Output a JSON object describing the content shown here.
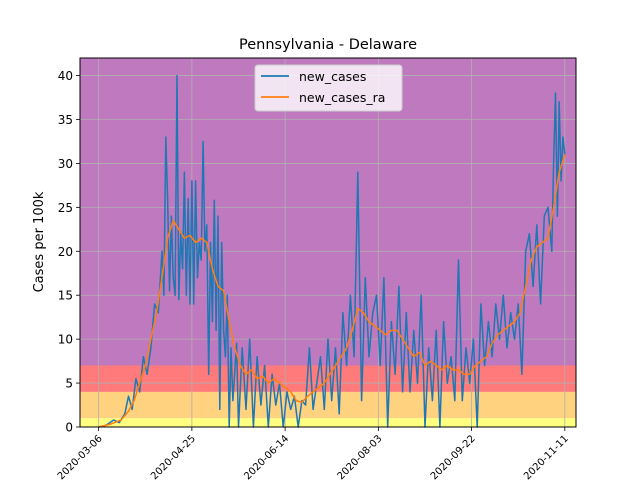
{
  "chart_data": {
    "type": "line",
    "title": "Pennsylvania - Delaware",
    "xlabel": "",
    "ylabel": "Cases per 100k",
    "x_range": [
      "2020-02-25",
      "2020-11-17"
    ],
    "ylim": [
      0,
      42
    ],
    "grid": true,
    "legend_position": "top-center",
    "x_ticks": [
      "2020-03-06",
      "2020-04-25",
      "2020-06-14",
      "2020-08-03",
      "2020-09-22",
      "2020-11-11"
    ],
    "y_ticks": [
      0,
      5,
      10,
      15,
      20,
      25,
      30,
      35,
      40
    ],
    "bands": [
      {
        "from": 0,
        "to": 1,
        "color": "#ffff80"
      },
      {
        "from": 1,
        "to": 4,
        "color": "#ffd280"
      },
      {
        "from": 4,
        "to": 7,
        "color": "#ff7a7a"
      },
      {
        "from": 7,
        "to": 42,
        "color": "#bf7abf"
      }
    ],
    "series": [
      {
        "name": "new_cases",
        "color": "#1f77b4",
        "points": [
          [
            "2020-03-06",
            0.0
          ],
          [
            "2020-03-10",
            0.2
          ],
          [
            "2020-03-14",
            0.8
          ],
          [
            "2020-03-17",
            0.5
          ],
          [
            "2020-03-20",
            1.5
          ],
          [
            "2020-03-22",
            3.5
          ],
          [
            "2020-03-24",
            2.0
          ],
          [
            "2020-03-26",
            5.5
          ],
          [
            "2020-03-28",
            4.0
          ],
          [
            "2020-03-30",
            8.0
          ],
          [
            "2020-04-01",
            6.0
          ],
          [
            "2020-04-03",
            9.0
          ],
          [
            "2020-04-05",
            14.0
          ],
          [
            "2020-04-07",
            13.0
          ],
          [
            "2020-04-09",
            20.0
          ],
          [
            "2020-04-10",
            15.0
          ],
          [
            "2020-04-11",
            33.0
          ],
          [
            "2020-04-12",
            26.0
          ],
          [
            "2020-04-13",
            15.5
          ],
          [
            "2020-04-14",
            24.0
          ],
          [
            "2020-04-15",
            17.0
          ],
          [
            "2020-04-16",
            15.0
          ],
          [
            "2020-04-17",
            40.0
          ],
          [
            "2020-04-18",
            14.5
          ],
          [
            "2020-04-19",
            22.0
          ],
          [
            "2020-04-20",
            18.0
          ],
          [
            "2020-04-21",
            29.0
          ],
          [
            "2020-04-22",
            15.0
          ],
          [
            "2020-04-23",
            26.0
          ],
          [
            "2020-04-24",
            14.0
          ],
          [
            "2020-04-25",
            28.0
          ],
          [
            "2020-04-26",
            14.0
          ],
          [
            "2020-04-27",
            28.0
          ],
          [
            "2020-04-28",
            17.0
          ],
          [
            "2020-04-29",
            21.0
          ],
          [
            "2020-04-30",
            19.0
          ],
          [
            "2020-05-01",
            32.5
          ],
          [
            "2020-05-02",
            20.0
          ],
          [
            "2020-05-03",
            23.0
          ],
          [
            "2020-05-04",
            6.0
          ],
          [
            "2020-05-05",
            21.0
          ],
          [
            "2020-05-06",
            12.0
          ],
          [
            "2020-05-07",
            25.8
          ],
          [
            "2020-05-08",
            11.0
          ],
          [
            "2020-05-09",
            24.0
          ],
          [
            "2020-05-10",
            2.0
          ],
          [
            "2020-05-11",
            21.0
          ],
          [
            "2020-05-12",
            11.0
          ],
          [
            "2020-05-13",
            8.0
          ],
          [
            "2020-05-14",
            15.0
          ],
          [
            "2020-05-15",
            0.0
          ],
          [
            "2020-05-16",
            9.0
          ],
          [
            "2020-05-17",
            3.0
          ],
          [
            "2020-05-19",
            9.5
          ],
          [
            "2020-05-20",
            0.0
          ],
          [
            "2020-05-22",
            9.0
          ],
          [
            "2020-05-24",
            2.0
          ],
          [
            "2020-05-26",
            10.0
          ],
          [
            "2020-05-28",
            0.0
          ],
          [
            "2020-05-30",
            8.0
          ],
          [
            "2020-06-01",
            2.5
          ],
          [
            "2020-06-03",
            7.0
          ],
          [
            "2020-06-05",
            0.0
          ],
          [
            "2020-06-07",
            6.0
          ],
          [
            "2020-06-09",
            2.5
          ],
          [
            "2020-06-11",
            5.0
          ],
          [
            "2020-06-13",
            0.0
          ],
          [
            "2020-06-15",
            4.0
          ],
          [
            "2020-06-17",
            2.0
          ],
          [
            "2020-06-19",
            3.5
          ],
          [
            "2020-06-21",
            0.0
          ],
          [
            "2020-06-23",
            3.0
          ],
          [
            "2020-06-25",
            2.5
          ],
          [
            "2020-06-27",
            9.0
          ],
          [
            "2020-06-29",
            2.0
          ],
          [
            "2020-07-01",
            5.0
          ],
          [
            "2020-07-03",
            8.0
          ],
          [
            "2020-07-05",
            2.0
          ],
          [
            "2020-07-07",
            10.0
          ],
          [
            "2020-07-09",
            3.0
          ],
          [
            "2020-07-11",
            9.0
          ],
          [
            "2020-07-13",
            1.5
          ],
          [
            "2020-07-15",
            13.0
          ],
          [
            "2020-07-17",
            7.0
          ],
          [
            "2020-07-19",
            15.0
          ],
          [
            "2020-07-21",
            8.0
          ],
          [
            "2020-07-23",
            29.0
          ],
          [
            "2020-07-25",
            3.0
          ],
          [
            "2020-07-27",
            17.0
          ],
          [
            "2020-07-29",
            8.0
          ],
          [
            "2020-07-31",
            13.0
          ],
          [
            "2020-08-02",
            15.0
          ],
          [
            "2020-08-04",
            7.0
          ],
          [
            "2020-08-06",
            17.0
          ],
          [
            "2020-08-08",
            0.0
          ],
          [
            "2020-08-10",
            12.0
          ],
          [
            "2020-08-12",
            6.0
          ],
          [
            "2020-08-14",
            16.0
          ],
          [
            "2020-08-16",
            4.0
          ],
          [
            "2020-08-18",
            13.0
          ],
          [
            "2020-08-20",
            4.0
          ],
          [
            "2020-08-22",
            11.0
          ],
          [
            "2020-08-24",
            5.0
          ],
          [
            "2020-08-26",
            15.0
          ],
          [
            "2020-08-28",
            0.0
          ],
          [
            "2020-08-30",
            9.0
          ],
          [
            "2020-09-01",
            3.0
          ],
          [
            "2020-09-03",
            11.0
          ],
          [
            "2020-09-05",
            0.0
          ],
          [
            "2020-09-07",
            12.0
          ],
          [
            "2020-09-09",
            5.0
          ],
          [
            "2020-09-11",
            8.0
          ],
          [
            "2020-09-13",
            3.0
          ],
          [
            "2020-09-15",
            19.0
          ],
          [
            "2020-09-17",
            3.0
          ],
          [
            "2020-09-19",
            9.0
          ],
          [
            "2020-09-21",
            5.0
          ],
          [
            "2020-09-23",
            10.0
          ],
          [
            "2020-09-25",
            0.0
          ],
          [
            "2020-09-27",
            14.0
          ],
          [
            "2020-09-29",
            7.0
          ],
          [
            "2020-10-01",
            12.0
          ],
          [
            "2020-10-03",
            8.0
          ],
          [
            "2020-10-05",
            14.0
          ],
          [
            "2020-10-07",
            10.0
          ],
          [
            "2020-10-09",
            15.0
          ],
          [
            "2020-10-11",
            9.0
          ],
          [
            "2020-10-13",
            13.0
          ],
          [
            "2020-10-15",
            10.0
          ],
          [
            "2020-10-17",
            14.0
          ],
          [
            "2020-10-19",
            6.0
          ],
          [
            "2020-10-21",
            20.0
          ],
          [
            "2020-10-23",
            22.0
          ],
          [
            "2020-10-25",
            16.0
          ],
          [
            "2020-10-27",
            23.0
          ],
          [
            "2020-10-29",
            14.0
          ],
          [
            "2020-10-31",
            24.0
          ],
          [
            "2020-11-02",
            25.0
          ],
          [
            "2020-11-04",
            20.0
          ],
          [
            "2020-11-05",
            30.0
          ],
          [
            "2020-11-06",
            38.0
          ],
          [
            "2020-11-07",
            24.0
          ],
          [
            "2020-11-08",
            37.0
          ],
          [
            "2020-11-09",
            28.0
          ],
          [
            "2020-11-10",
            33.0
          ],
          [
            "2020-11-11",
            31.0
          ]
        ]
      },
      {
        "name": "new_cases_ra",
        "color": "#ff7f0e",
        "points": [
          [
            "2020-03-06",
            0.0
          ],
          [
            "2020-03-12",
            0.3
          ],
          [
            "2020-03-18",
            0.8
          ],
          [
            "2020-03-22",
            1.8
          ],
          [
            "2020-03-25",
            3.0
          ],
          [
            "2020-03-28",
            5.0
          ],
          [
            "2020-03-31",
            7.0
          ],
          [
            "2020-04-03",
            10.0
          ],
          [
            "2020-04-06",
            13.0
          ],
          [
            "2020-04-09",
            17.0
          ],
          [
            "2020-04-12",
            21.5
          ],
          [
            "2020-04-15",
            23.5
          ],
          [
            "2020-04-18",
            22.5
          ],
          [
            "2020-04-21",
            21.5
          ],
          [
            "2020-04-24",
            21.8
          ],
          [
            "2020-04-27",
            21.0
          ],
          [
            "2020-04-30",
            21.5
          ],
          [
            "2020-05-03",
            21.0
          ],
          [
            "2020-05-06",
            18.0
          ],
          [
            "2020-05-09",
            16.0
          ],
          [
            "2020-05-12",
            15.5
          ],
          [
            "2020-05-15",
            12.0
          ],
          [
            "2020-05-18",
            9.0
          ],
          [
            "2020-05-21",
            7.0
          ],
          [
            "2020-05-24",
            6.0
          ],
          [
            "2020-05-27",
            6.5
          ],
          [
            "2020-05-30",
            5.5
          ],
          [
            "2020-06-02",
            5.8
          ],
          [
            "2020-06-05",
            5.0
          ],
          [
            "2020-06-08",
            5.5
          ],
          [
            "2020-06-11",
            5.0
          ],
          [
            "2020-06-14",
            4.5
          ],
          [
            "2020-06-17",
            4.0
          ],
          [
            "2020-06-20",
            3.0
          ],
          [
            "2020-06-23",
            2.8
          ],
          [
            "2020-06-26",
            3.5
          ],
          [
            "2020-06-29",
            4.0
          ],
          [
            "2020-07-02",
            4.5
          ],
          [
            "2020-07-05",
            5.0
          ],
          [
            "2020-07-08",
            6.0
          ],
          [
            "2020-07-11",
            7.0
          ],
          [
            "2020-07-14",
            8.0
          ],
          [
            "2020-07-17",
            9.0
          ],
          [
            "2020-07-20",
            11.0
          ],
          [
            "2020-07-23",
            13.5
          ],
          [
            "2020-07-26",
            13.0
          ],
          [
            "2020-07-29",
            12.0
          ],
          [
            "2020-08-01",
            11.5
          ],
          [
            "2020-08-04",
            11.0
          ],
          [
            "2020-08-07",
            10.5
          ],
          [
            "2020-08-10",
            11.0
          ],
          [
            "2020-08-13",
            11.0
          ],
          [
            "2020-08-16",
            10.0
          ],
          [
            "2020-08-19",
            9.0
          ],
          [
            "2020-08-22",
            8.0
          ],
          [
            "2020-08-25",
            8.5
          ],
          [
            "2020-08-28",
            7.0
          ],
          [
            "2020-08-31",
            7.5
          ],
          [
            "2020-09-03",
            7.0
          ],
          [
            "2020-09-06",
            6.5
          ],
          [
            "2020-09-09",
            7.0
          ],
          [
            "2020-09-12",
            6.5
          ],
          [
            "2020-09-15",
            6.5
          ],
          [
            "2020-09-18",
            6.0
          ],
          [
            "2020-09-21",
            6.0
          ],
          [
            "2020-09-24",
            7.0
          ],
          [
            "2020-09-27",
            7.5
          ],
          [
            "2020-09-30",
            8.0
          ],
          [
            "2020-10-03",
            9.5
          ],
          [
            "2020-10-06",
            10.5
          ],
          [
            "2020-10-09",
            11.0
          ],
          [
            "2020-10-12",
            11.5
          ],
          [
            "2020-10-15",
            12.0
          ],
          [
            "2020-10-18",
            13.0
          ],
          [
            "2020-10-21",
            16.0
          ],
          [
            "2020-10-24",
            19.0
          ],
          [
            "2020-10-27",
            20.5
          ],
          [
            "2020-10-30",
            21.0
          ],
          [
            "2020-11-02",
            21.5
          ],
          [
            "2020-11-05",
            25.0
          ],
          [
            "2020-11-08",
            29.0
          ],
          [
            "2020-11-11",
            31.0
          ]
        ]
      }
    ]
  }
}
